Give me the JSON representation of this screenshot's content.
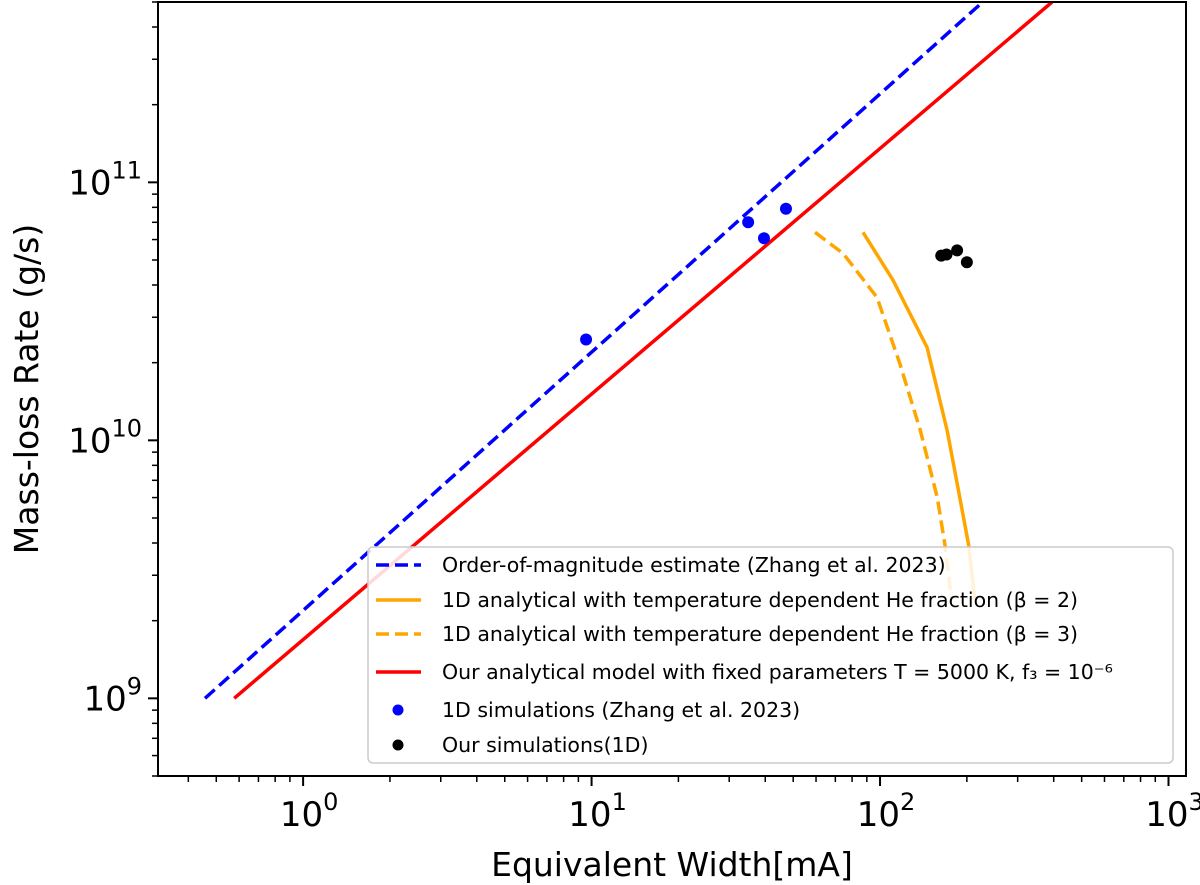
{
  "chart_data": {
    "type": "line",
    "xlabel": "Equivalent Width[mA]",
    "ylabel": "Mass-loss Rate (g/s)",
    "xscale": "log",
    "yscale": "log",
    "xlim": [
      0.314,
      1150
    ],
    "ylim": [
      500000000.0,
      500000000000.0
    ],
    "grid": false,
    "legend_placement": "lower-right",
    "x_ticks": [
      {
        "value": 1,
        "base": "10",
        "exp": "0"
      },
      {
        "value": 10,
        "base": "10",
        "exp": "1"
      },
      {
        "value": 100,
        "base": "10",
        "exp": "2"
      },
      {
        "value": 1000,
        "base": "10",
        "exp": "3"
      }
    ],
    "y_ticks": [
      {
        "value": 1000000000.0,
        "base": "10",
        "exp": "9"
      },
      {
        "value": 10000000000.0,
        "base": "10",
        "exp": "10"
      },
      {
        "value": 100000000000.0,
        "base": "10",
        "exp": "11"
      }
    ],
    "series": [
      {
        "name": "Order-of-magnitude estimate (Zhang et al. 2023)",
        "kind": "line",
        "style": "dashed",
        "color": "#0000ff",
        "x": [
          0.457,
          227
        ],
        "y": [
          1000000000.0,
          500000000000.0
        ]
      },
      {
        "name": "1D analytical with temperature dependent He fraction (β = 2)",
        "kind": "line",
        "style": "solid",
        "color": "#ffa500",
        "x": [
          87.3,
          111,
          145.6,
          171,
          189,
          203,
          213
        ],
        "y": [
          64000000000.0,
          41700000000.0,
          22900000000.0,
          10900000000.0,
          6000000000.0,
          3920000000.0,
          2400000000.0
        ]
      },
      {
        "name": "1D analytical with temperature dependent He fraction (β = 3)",
        "kind": "line",
        "style": "dashed",
        "color": "#ffa500",
        "x": [
          59.5,
          74.5,
          97.6,
          117,
          138,
          158,
          168,
          177
        ],
        "y": [
          64000000000.0,
          53000000000.0,
          35800000000.0,
          19900000000.0,
          10900000000.0,
          6000000000.0,
          3920000000.0,
          2400000000.0
        ]
      },
      {
        "name": "Our analytical model with fixed parameters T = 5000 K, f₃ = 10⁻⁶",
        "kind": "line",
        "style": "solid",
        "color": "#ff0000",
        "x": [
          0.577,
          395
        ],
        "y": [
          1000000000.0,
          500000000000.0
        ]
      },
      {
        "name": "1D simulations (Zhang et al. 2023)",
        "kind": "scatter",
        "color": "#0000ff",
        "x": [
          9.57,
          34.9,
          39.6,
          47.2
        ],
        "y": [
          24600000000.0,
          70000000000.0,
          60700000000.0,
          79000000000.0
        ]
      },
      {
        "name": "Our simulations(1D)",
        "kind": "scatter",
        "color": "#000000",
        "x": [
          163,
          170,
          185,
          200
        ],
        "y": [
          52000000000.0,
          52500000000.0,
          54500000000.0,
          49000000000.0
        ]
      }
    ]
  }
}
